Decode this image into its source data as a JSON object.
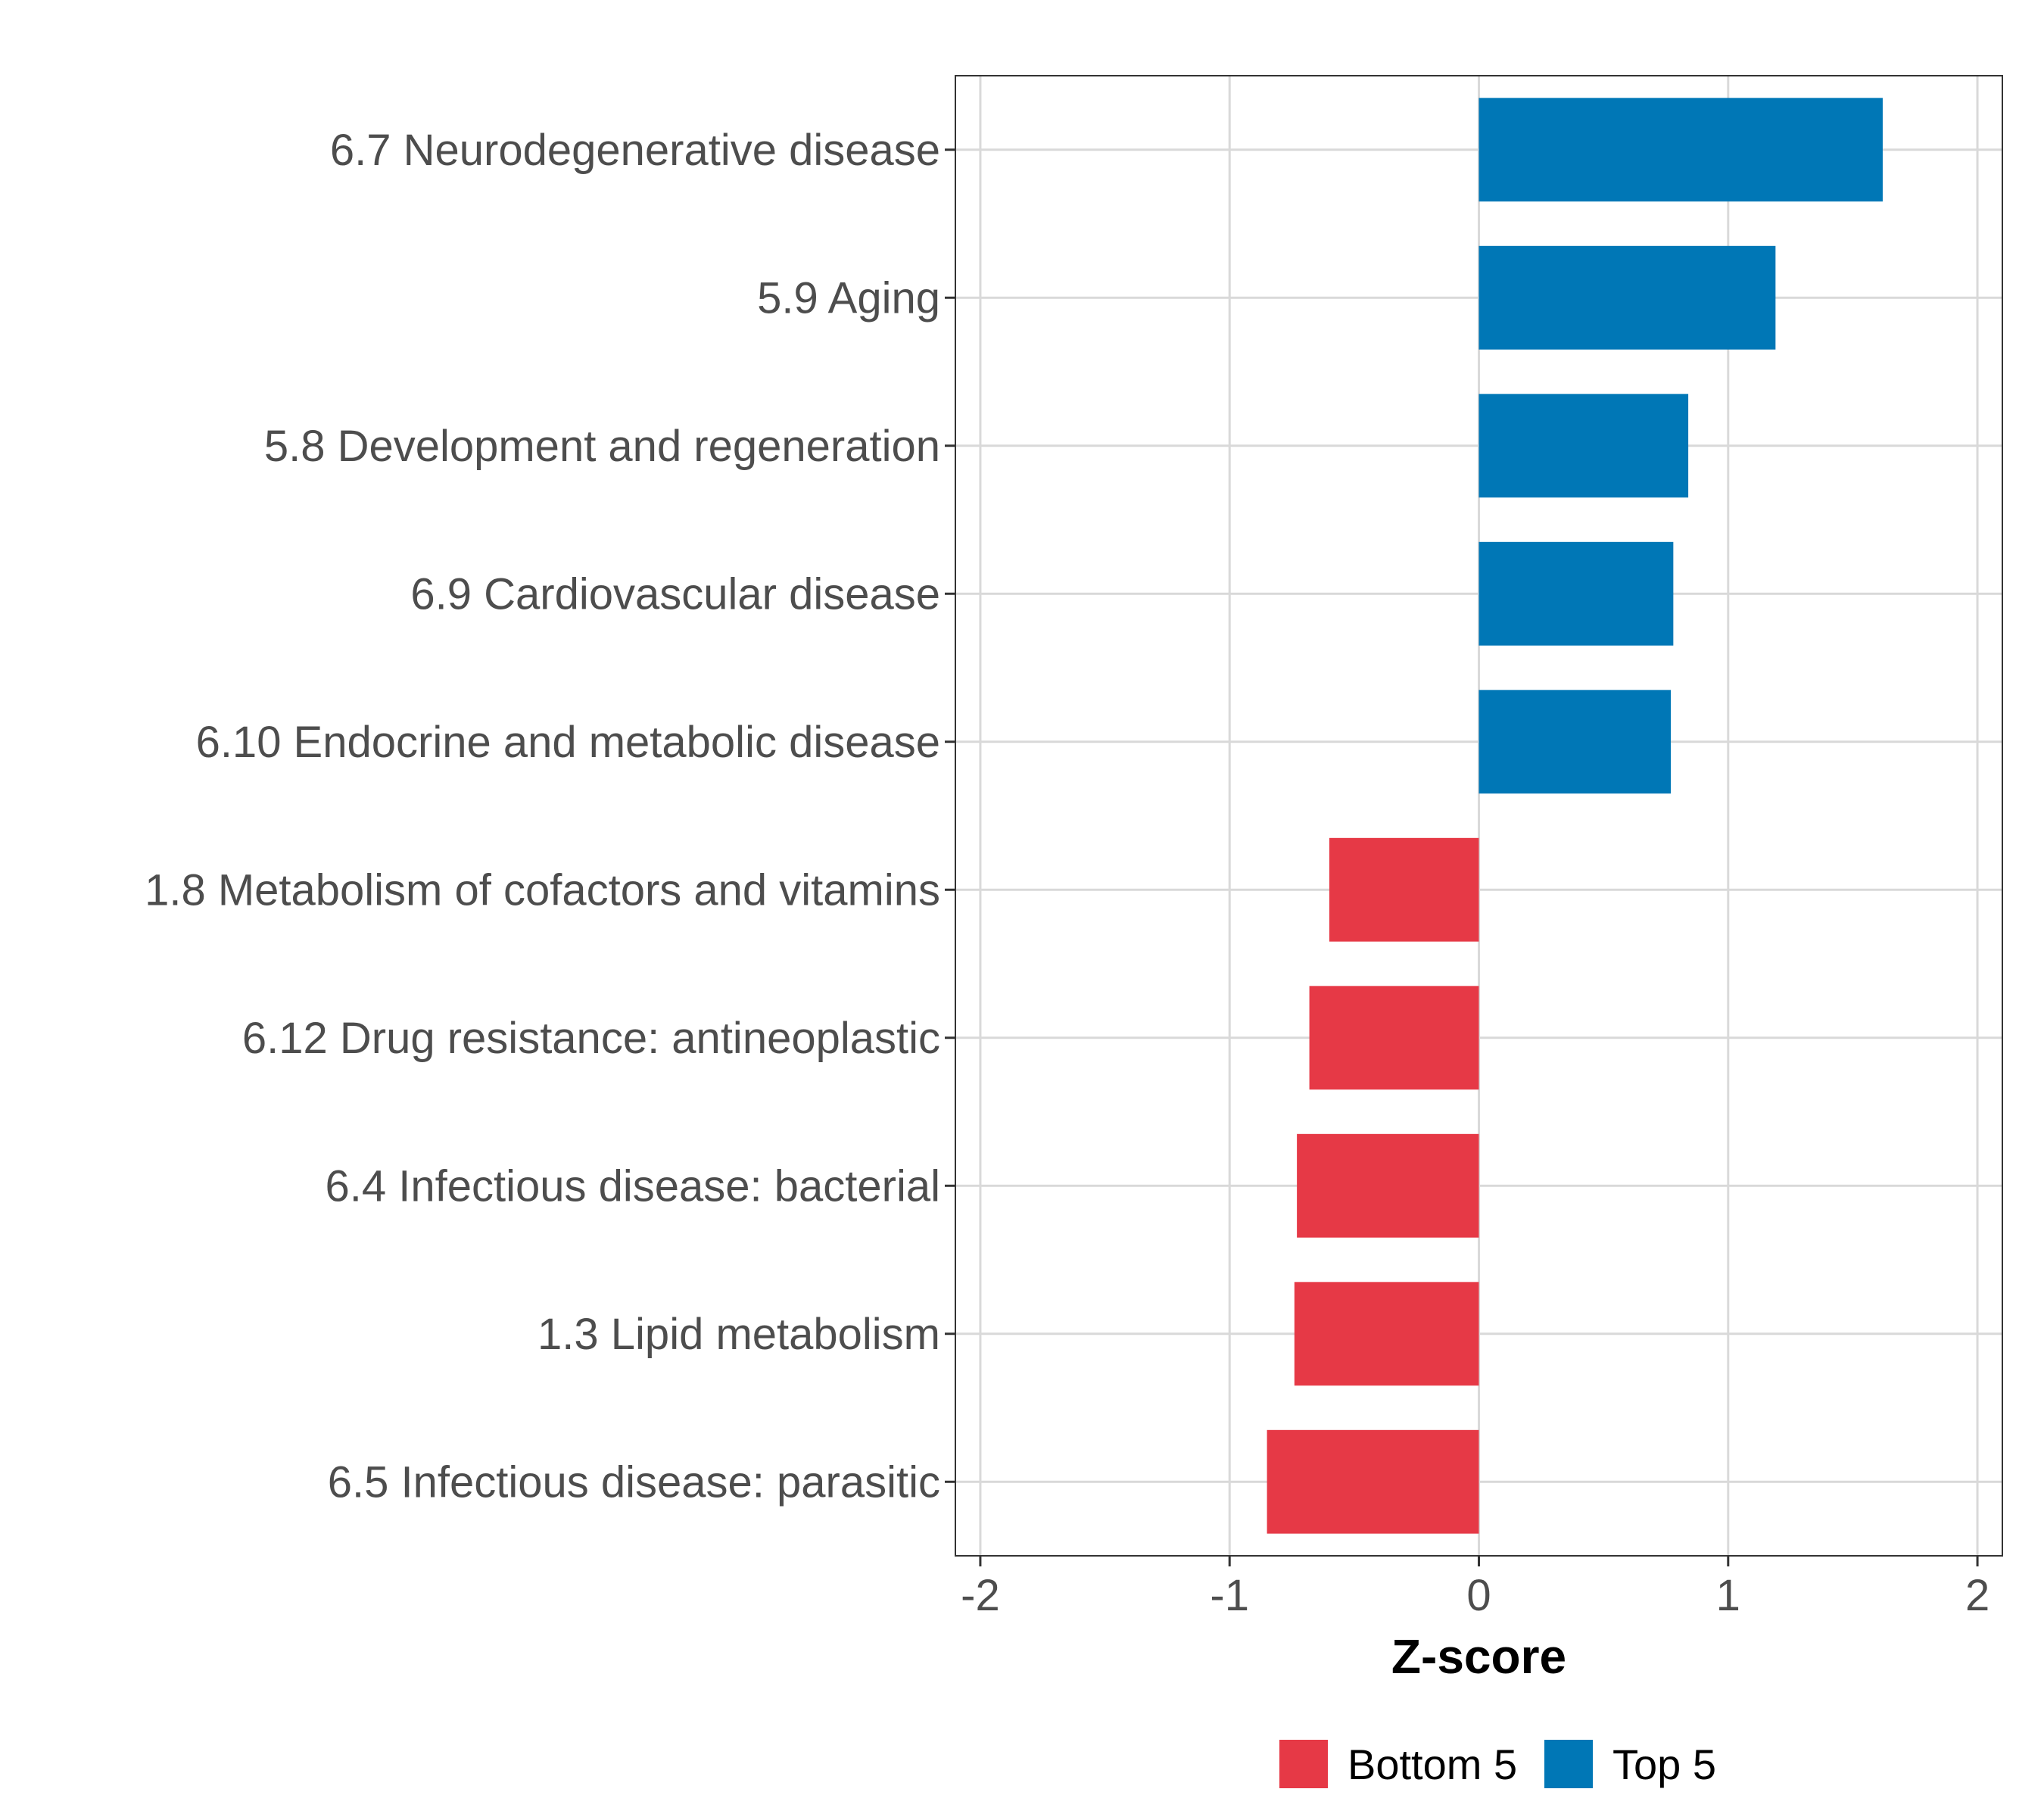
{
  "chart_data": {
    "type": "bar",
    "orientation": "horizontal",
    "categories": [
      "6.7 Neurodegenerative disease",
      "5.9 Aging",
      "5.8 Development and regeneration",
      "6.9 Cardiovascular disease",
      "6.10 Endocrine and metabolic disease",
      "1.8 Metabolism of cofactors and vitamins",
      "6.12 Drug resistance: antineoplastic",
      "6.4 Infectious disease: bacterial",
      "1.3 Lipid metabolism",
      "6.5 Infectious disease: parasitic"
    ],
    "values": [
      1.62,
      1.19,
      0.84,
      0.78,
      0.77,
      -0.6,
      -0.68,
      -0.73,
      -0.74,
      -0.85
    ],
    "groups": [
      "Top 5",
      "Top 5",
      "Top 5",
      "Top 5",
      "Top 5",
      "Bottom 5",
      "Bottom 5",
      "Bottom 5",
      "Bottom 5",
      "Bottom 5"
    ],
    "xlabel": "Z-score",
    "ylabel": "",
    "xlim": [
      -2.1,
      2.1
    ],
    "xticks": [
      -2,
      -1,
      0,
      1,
      2
    ],
    "xtick_labels": [
      "-2",
      "-1",
      "0",
      "1",
      "2"
    ],
    "grid": true,
    "legend": {
      "position": "bottom",
      "entries": [
        {
          "label": "Bottom 5",
          "color": "#E63946"
        },
        {
          "label": "Top 5",
          "color": "#0077B6"
        }
      ]
    }
  },
  "colors": {
    "top": "#0077B6",
    "bottom": "#E63946",
    "grid": "#d9d9d9",
    "axis": "#333333"
  }
}
